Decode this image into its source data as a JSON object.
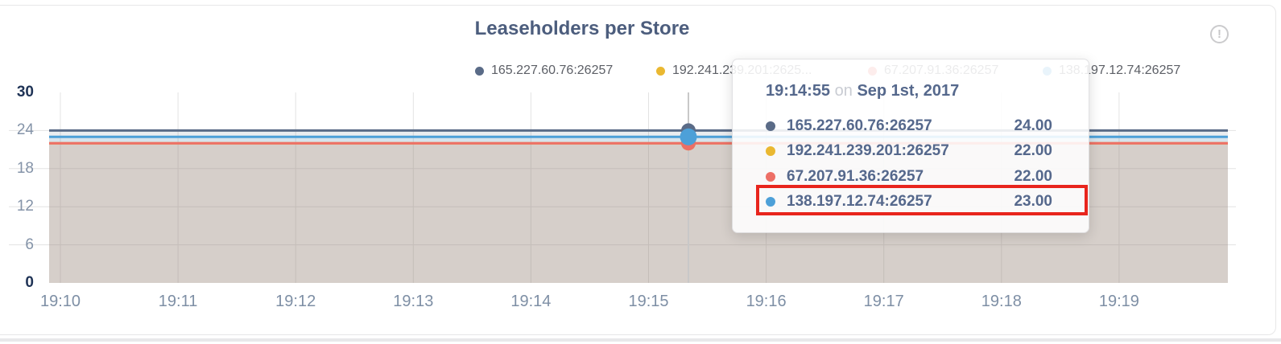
{
  "panel": {
    "info_icon_glyph": "!"
  },
  "chart_data": {
    "type": "area",
    "title": "Leaseholders per Store",
    "x_ticks": [
      "19:10",
      "19:11",
      "19:12",
      "19:13",
      "19:14",
      "19:15",
      "19:16",
      "19:17",
      "19:18",
      "19:19"
    ],
    "xlabel": "",
    "ylabel": "",
    "ylim": [
      0,
      30
    ],
    "y_tick_labels": [
      "30",
      "24",
      "18",
      "12",
      "6",
      "0"
    ],
    "y_gridline_values": [
      24,
      18,
      12,
      6
    ],
    "grid": true,
    "legend_position": "top-center",
    "fill_opacity": 0.12,
    "grid_color": "#e3e3e3",
    "hover_line_color": "#c8c8c8",
    "series": [
      {
        "name": "165.227.60.76:26257",
        "legend_label": "165.227.60.76:26257",
        "color": "#5a6b87",
        "value": 24,
        "value_label": "24.00"
      },
      {
        "name": "192.241.239.201:26257",
        "legend_label": "192.241.239.201:2625...",
        "color": "#eab831",
        "value": 22,
        "value_label": "22.00"
      },
      {
        "name": "67.207.91.36:26257",
        "legend_label": "67.207.91.36:26257",
        "color": "#ed6f66",
        "value": 22,
        "value_label": "22.00"
      },
      {
        "name": "138.197.12.74:26257",
        "legend_label": "138.197.12.74:26257",
        "color": "#4da0d8",
        "value": 23,
        "value_label": "23.00"
      }
    ],
    "tooltip": {
      "time": "19:14:55",
      "connector": "on",
      "date": "Sep 1st, 2017"
    },
    "annotation": {
      "type": "highlight-box",
      "series_index": 3,
      "series_name": "138.197.12.74:26257",
      "color": "#e8251d"
    }
  }
}
